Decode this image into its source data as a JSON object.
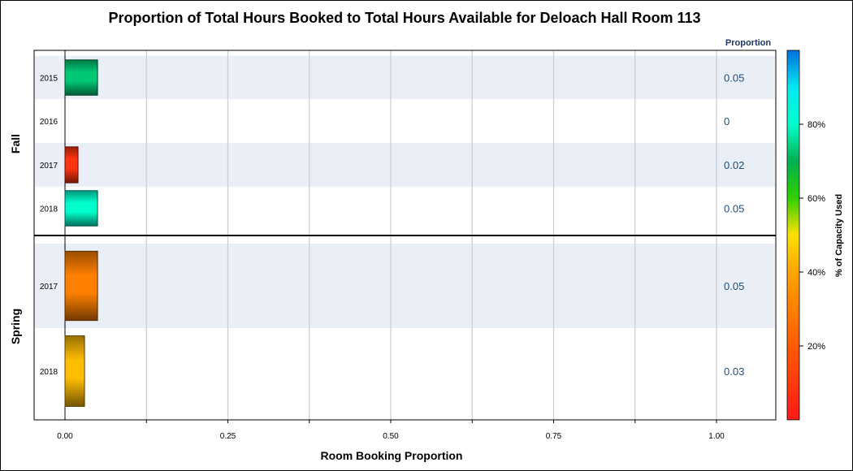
{
  "chart_data": {
    "type": "bar",
    "title": "Proportion of Total Hours Booked to Total Hours Available for Deloach Hall Room 113",
    "xlabel": "Room Booking Proportion",
    "xlim": [
      0,
      1.0
    ],
    "x_ticks": [
      "0.00",
      "0.25",
      "0.50",
      "0.75",
      "1.00"
    ],
    "value_column_header": "Proportion",
    "colorbar": {
      "label": "% of Capacity Used",
      "ticks": [
        "20%",
        "40%",
        "60%",
        "80%"
      ],
      "tick_values": [
        20,
        40,
        60,
        80
      ],
      "range": [
        0,
        100
      ]
    },
    "groups": [
      {
        "name": "Fall",
        "rows": [
          {
            "year": "2015",
            "value": 0.05,
            "value_label": "0.05",
            "capacity_pct": 73
          },
          {
            "year": "2016",
            "value": 0,
            "value_label": "0",
            "capacity_pct": 0
          },
          {
            "year": "2017",
            "value": 0.02,
            "value_label": "0.02",
            "capacity_pct": 8
          },
          {
            "year": "2018",
            "value": 0.05,
            "value_label": "0.05",
            "capacity_pct": 80
          }
        ]
      },
      {
        "name": "Spring",
        "rows": [
          {
            "year": "2017",
            "value": 0.05,
            "value_label": "0.05",
            "capacity_pct": 30
          },
          {
            "year": "2018",
            "value": 0.03,
            "value_label": "0.03",
            "capacity_pct": 44
          }
        ]
      }
    ]
  }
}
